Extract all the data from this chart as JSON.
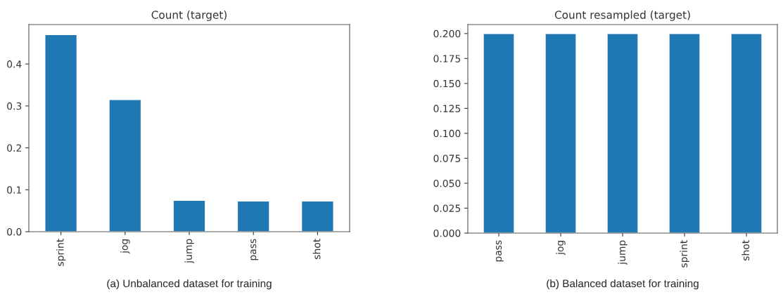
{
  "chart_data": [
    {
      "type": "bar",
      "title": "Count (target)",
      "categories": [
        "sprint",
        "jog",
        "jump",
        "pass",
        "shot"
      ],
      "values": [
        0.47,
        0.315,
        0.075,
        0.073,
        0.073
      ],
      "color": "#1f77b4",
      "ylim": [
        0,
        0.494
      ],
      "yticks": [
        {
          "value": 0.0,
          "label": "0.0"
        },
        {
          "value": 0.1,
          "label": "0.1"
        },
        {
          "value": 0.2,
          "label": "0.2"
        },
        {
          "value": 0.3,
          "label": "0.3"
        },
        {
          "value": 0.4,
          "label": "0.4"
        }
      ],
      "grid": false,
      "annotations": [
        "(a) Unbalanced dataset for training"
      ]
    },
    {
      "type": "bar",
      "title": "Count resampled (target)",
      "categories": [
        "pass",
        "jog",
        "jump",
        "sprint",
        "shot"
      ],
      "values": [
        0.2,
        0.2,
        0.2,
        0.2,
        0.2
      ],
      "color": "#1f77b4",
      "ylim": [
        0,
        0.209
      ],
      "yticks": [
        {
          "value": 0.0,
          "label": "0.000"
        },
        {
          "value": 0.025,
          "label": "0.025"
        },
        {
          "value": 0.05,
          "label": "0.050"
        },
        {
          "value": 0.075,
          "label": "0.075"
        },
        {
          "value": 0.1,
          "label": "0.100"
        },
        {
          "value": 0.125,
          "label": "0.125"
        },
        {
          "value": 0.15,
          "label": "0.150"
        },
        {
          "value": 0.175,
          "label": "0.175"
        },
        {
          "value": 0.2,
          "label": "0.200"
        }
      ],
      "grid": false,
      "annotations": [
        "(b) Balanced dataset for training"
      ]
    }
  ]
}
